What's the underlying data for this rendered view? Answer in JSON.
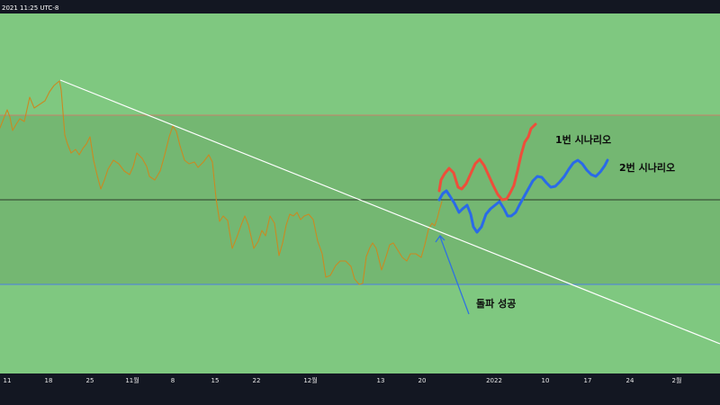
{
  "header": {
    "timestamp": "2021 11:25 UTC-8"
  },
  "colors": {
    "page_bg": "#131722",
    "chart_bg": "#7fc880",
    "band_bg": "#74b772",
    "price_line": "#c98a22",
    "trendline": "#ffffff",
    "resistance": "#c98069",
    "mid_line": "#2b3a2b",
    "support": "#4c7ee6",
    "scenario1": "#ee4e3a",
    "scenario2": "#2a6ae8",
    "arrow": "#2f72e0"
  },
  "annotations": {
    "scenario1_label": "1번 시나리오",
    "scenario2_label": "2번 시나리오",
    "breakout_label": "돌파 성공"
  },
  "chart_data": {
    "type": "line",
    "title": "",
    "xlabel": "",
    "ylabel": "",
    "x_ticks": [
      "11",
      "18",
      "25",
      "11월",
      "8",
      "15",
      "22",
      "12월",
      "13",
      "20",
      "2022",
      "10",
      "17",
      "24",
      "2월"
    ],
    "grid": false,
    "horizontal_levels": [
      {
        "role": "resistance",
        "y": 128
      },
      {
        "role": "mid",
        "y": 222
      },
      {
        "role": "support",
        "y": 316
      }
    ],
    "series": [
      {
        "values": [
          [
            0,
            142
          ],
          [
            4,
            132
          ],
          [
            8,
            122
          ],
          [
            11,
            130
          ],
          [
            14,
            145
          ],
          [
            18,
            138
          ],
          [
            22,
            132
          ],
          [
            27,
            135
          ],
          [
            33,
            108
          ],
          [
            38,
            120
          ],
          [
            44,
            116
          ],
          [
            50,
            112
          ],
          [
            55,
            102
          ],
          [
            60,
            95
          ],
          [
            66,
            90
          ],
          [
            68,
            100
          ],
          [
            72,
            150
          ],
          [
            75,
            160
          ],
          [
            79,
            170
          ],
          [
            84,
            166
          ],
          [
            88,
            172
          ],
          [
            92,
            165
          ],
          [
            96,
            160
          ],
          [
            100,
            152
          ],
          [
            104,
            178
          ],
          [
            108,
            195
          ],
          [
            112,
            210
          ],
          [
            116,
            200
          ],
          [
            120,
            188
          ],
          [
            126,
            178
          ],
          [
            132,
            182
          ],
          [
            138,
            190
          ],
          [
            144,
            194
          ],
          [
            148,
            185
          ],
          [
            152,
            170
          ],
          [
            158,
            176
          ],
          [
            163,
            185
          ],
          [
            166,
            196
          ],
          [
            172,
            200
          ],
          [
            178,
            190
          ],
          [
            183,
            172
          ],
          [
            188,
            152
          ],
          [
            192,
            140
          ],
          [
            196,
            146
          ],
          [
            200,
            162
          ],
          [
            205,
            178
          ],
          [
            210,
            182
          ],
          [
            216,
            180
          ],
          [
            220,
            186
          ],
          [
            226,
            180
          ],
          [
            232,
            172
          ],
          [
            236,
            180
          ],
          [
            240,
            220
          ],
          [
            244,
            246
          ],
          [
            248,
            240
          ],
          [
            253,
            245
          ],
          [
            258,
            276
          ],
          [
            263,
            264
          ],
          [
            268,
            250
          ],
          [
            272,
            240
          ],
          [
            276,
            250
          ],
          [
            282,
            276
          ],
          [
            287,
            268
          ],
          [
            291,
            256
          ],
          [
            295,
            262
          ],
          [
            300,
            240
          ],
          [
            305,
            248
          ],
          [
            310,
            284
          ],
          [
            314,
            270
          ],
          [
            318,
            250
          ],
          [
            322,
            238
          ],
          [
            326,
            240
          ],
          [
            330,
            236
          ],
          [
            334,
            244
          ],
          [
            338,
            240
          ],
          [
            343,
            238
          ],
          [
            348,
            244
          ],
          [
            353,
            268
          ],
          [
            358,
            282
          ],
          [
            362,
            308
          ],
          [
            367,
            306
          ],
          [
            373,
            295
          ],
          [
            378,
            290
          ],
          [
            384,
            290
          ],
          [
            390,
            296
          ],
          [
            394,
            310
          ],
          [
            399,
            316
          ],
          [
            403,
            315
          ],
          [
            407,
            285
          ],
          [
            411,
            275
          ],
          [
            414,
            270
          ],
          [
            418,
            276
          ],
          [
            424,
            300
          ],
          [
            429,
            285
          ],
          [
            433,
            272
          ],
          [
            437,
            270
          ],
          [
            442,
            278
          ],
          [
            447,
            286
          ],
          [
            452,
            290
          ],
          [
            456,
            282
          ],
          [
            462,
            282
          ],
          [
            468,
            286
          ],
          [
            472,
            272
          ],
          [
            476,
            255
          ],
          [
            480,
            248
          ],
          [
            483,
            251
          ],
          [
            486,
            242
          ],
          [
            488,
            234
          ],
          [
            491,
            224
          ]
        ]
      },
      {
        "name": "1번 시나리오",
        "values": [
          [
            488,
            212
          ],
          [
            490,
            200
          ],
          [
            494,
            193
          ],
          [
            499,
            187
          ],
          [
            504,
            192
          ],
          [
            509,
            208
          ],
          [
            513,
            210
          ],
          [
            518,
            204
          ],
          [
            523,
            193
          ],
          [
            528,
            182
          ],
          [
            533,
            177
          ],
          [
            538,
            184
          ],
          [
            543,
            195
          ],
          [
            548,
            206
          ],
          [
            553,
            216
          ],
          [
            558,
            222
          ],
          [
            563,
            221
          ],
          [
            567,
            214
          ],
          [
            571,
            206
          ],
          [
            575,
            190
          ],
          [
            579,
            172
          ],
          [
            583,
            158
          ],
          [
            587,
            152
          ],
          [
            590,
            143
          ],
          [
            595,
            138
          ]
        ]
      },
      {
        "name": "2번 시나리오",
        "values": [
          [
            488,
            222
          ],
          [
            492,
            215
          ],
          [
            496,
            212
          ],
          [
            500,
            218
          ],
          [
            505,
            226
          ],
          [
            510,
            236
          ],
          [
            514,
            232
          ],
          [
            519,
            228
          ],
          [
            523,
            238
          ],
          [
            526,
            252
          ],
          [
            530,
            258
          ],
          [
            535,
            252
          ],
          [
            540,
            238
          ],
          [
            545,
            232
          ],
          [
            550,
            228
          ],
          [
            555,
            224
          ],
          [
            560,
            232
          ],
          [
            564,
            240
          ],
          [
            568,
            240
          ],
          [
            573,
            236
          ],
          [
            577,
            228
          ],
          [
            582,
            219
          ],
          [
            587,
            210
          ],
          [
            592,
            201
          ],
          [
            597,
            196
          ],
          [
            602,
            197
          ],
          [
            607,
            203
          ],
          [
            612,
            208
          ],
          [
            617,
            207
          ],
          [
            622,
            202
          ],
          [
            627,
            196
          ],
          [
            632,
            188
          ],
          [
            637,
            181
          ],
          [
            642,
            178
          ],
          [
            647,
            182
          ],
          [
            652,
            189
          ],
          [
            657,
            194
          ],
          [
            662,
            196
          ],
          [
            667,
            191
          ],
          [
            672,
            184
          ],
          [
            675,
            178
          ]
        ]
      }
    ]
  }
}
